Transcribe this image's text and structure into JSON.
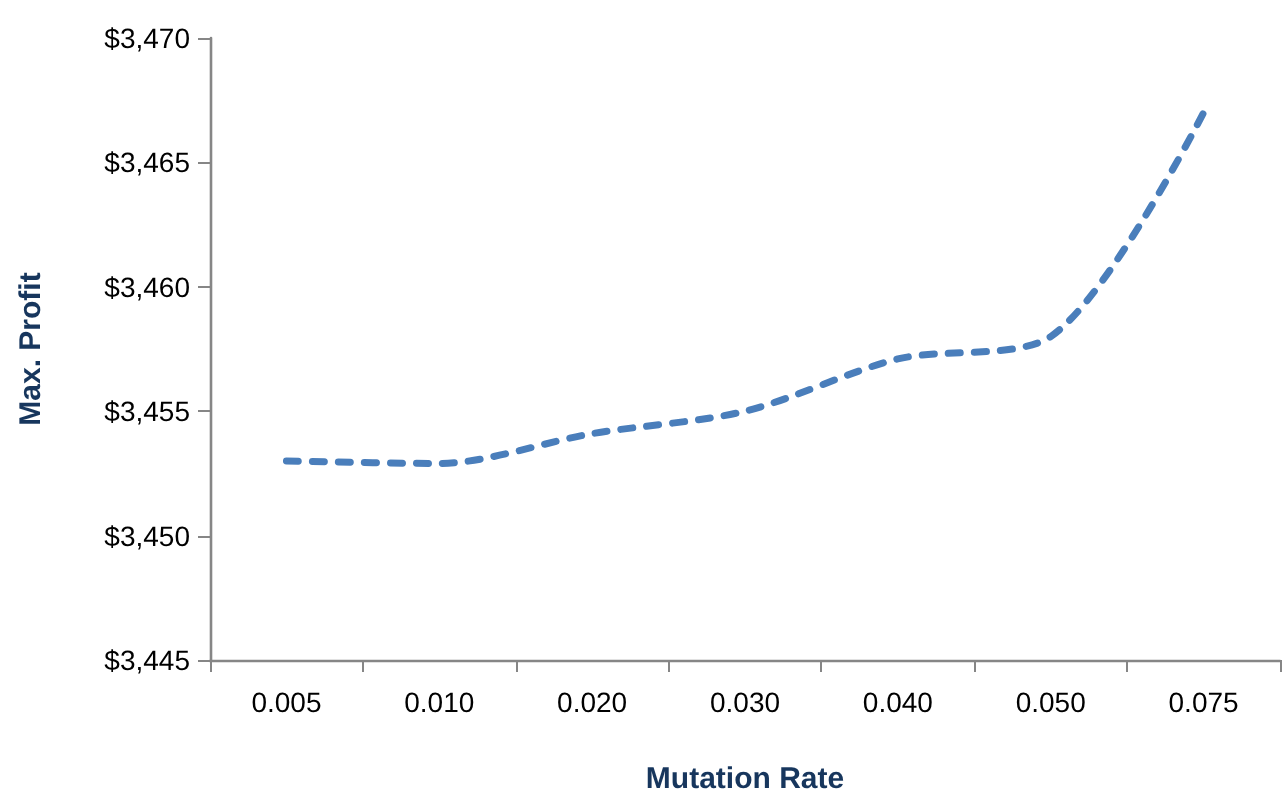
{
  "chart_data": {
    "type": "line",
    "xlabel": "Mutation Rate",
    "ylabel": "Max. Profit",
    "categories": [
      "0.005",
      "0.010",
      "0.020",
      "0.030",
      "0.040",
      "0.050",
      "0.075"
    ],
    "series": [
      {
        "color": "#4a7ebb",
        "values": [
          3453.0,
          3452.9,
          3454.1,
          3455.0,
          3457.1,
          3458.0,
          3467.0
        ]
      }
    ],
    "ylim": [
      3445,
      3470
    ],
    "yticks": [
      {
        "value": 3445,
        "label": "$3,445"
      },
      {
        "value": 3450,
        "label": "$3,450"
      },
      {
        "value": 3455,
        "label": "$3,455"
      },
      {
        "value": 3460,
        "label": "$3,460"
      },
      {
        "value": 3465,
        "label": "$3,465"
      },
      {
        "value": 3470,
        "label": "$3,470"
      }
    ],
    "grid": false,
    "marker": "none",
    "line_style": "dashed"
  }
}
